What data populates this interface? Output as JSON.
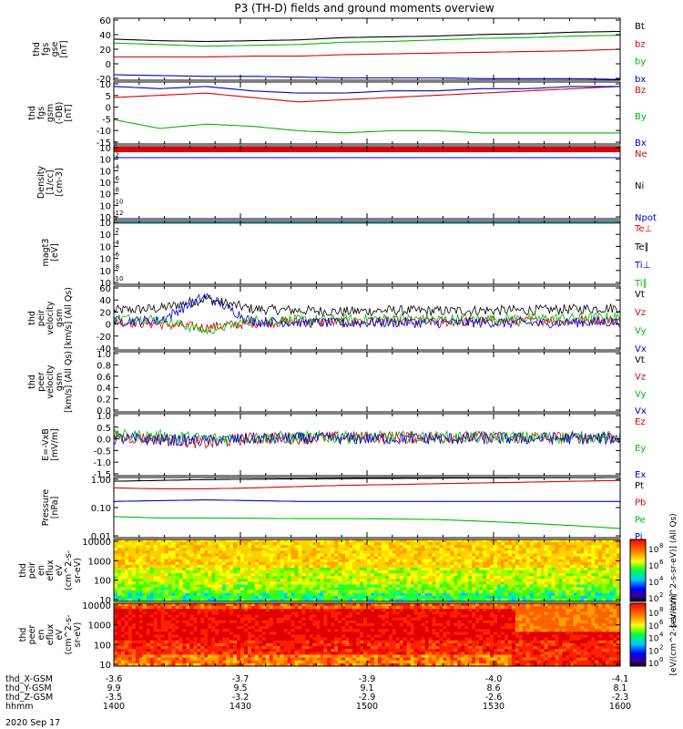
{
  "title": "P3 (TH-D) fields and ground moments overview",
  "colors": {
    "black": "#000000",
    "red": "#e00000",
    "green": "#00cc00",
    "blue": "#0000cc"
  },
  "chart_data": [
    {
      "type": "line",
      "panel": "fgs_gse",
      "ylabel": [
        "thd",
        "fgs",
        "gse",
        "[nT]"
      ],
      "yticks": [
        "60",
        "40",
        "20",
        "0",
        "-20"
      ],
      "ylim": [
        -20,
        60
      ],
      "series": [
        {
          "name": "Bt",
          "color": "black",
          "values": [
            33,
            31,
            30,
            31,
            32,
            35,
            36,
            37,
            39,
            40,
            42,
            43
          ]
        },
        {
          "name": "bz",
          "color": "red",
          "values": [
            10,
            10,
            10,
            11,
            11,
            13,
            14,
            15,
            16,
            17,
            18,
            20
          ]
        },
        {
          "name": "by",
          "color": "green",
          "values": [
            28,
            26,
            24,
            25,
            26,
            29,
            30,
            32,
            34,
            35,
            37,
            38
          ]
        },
        {
          "name": "bx",
          "color": "blue",
          "values": [
            -13,
            -14,
            -15,
            -15,
            -16,
            -17,
            -17,
            -17,
            -18,
            -18,
            -18,
            -19
          ]
        }
      ]
    },
    {
      "type": "line",
      "panel": "fgs_gsm",
      "ylabel": [
        "thd",
        "fgs",
        "gsm",
        "(-DB)",
        "[nT]"
      ],
      "yticks": [
        "10",
        "5",
        "0",
        "-5",
        "-10",
        "-15"
      ],
      "ylim": [
        -18,
        10
      ],
      "series": [
        {
          "name": "Bz",
          "color": "red",
          "values": [
            3,
            4,
            5,
            3,
            1,
            2,
            3,
            4,
            5,
            6,
            7,
            8
          ]
        },
        {
          "name": "By",
          "color": "green",
          "values": [
            -7,
            -11,
            -9,
            -10,
            -12,
            -13,
            -12,
            -12,
            -13,
            -13,
            -13,
            -13
          ]
        },
        {
          "name": "Bx",
          "color": "blue",
          "values": [
            8,
            7,
            8,
            6,
            5,
            5,
            6,
            6,
            7,
            7,
            8,
            8
          ]
        }
      ]
    },
    {
      "type": "line",
      "panel": "density",
      "ylabel": [
        "Density",
        "[1/cc]",
        "[cm-3]"
      ],
      "yticks": [
        "10^0",
        "10^-2",
        "10^-4",
        "10^-6",
        "10^-8",
        "10^-10",
        "10^-12"
      ],
      "scale": "log",
      "series": [
        {
          "name": "Ne",
          "color": "red",
          "values": [
            1,
            1,
            1,
            1,
            1,
            1,
            1,
            1,
            1,
            1,
            1,
            1
          ]
        },
        {
          "name": "Ni",
          "color": "black",
          "values": []
        },
        {
          "name": "Npot",
          "color": "blue",
          "values": [
            1,
            1,
            1,
            1,
            1,
            1,
            1,
            1,
            1,
            1,
            1,
            1
          ]
        }
      ]
    },
    {
      "type": "line",
      "panel": "temperature",
      "ylabel": [
        "magt3",
        "[eV]"
      ],
      "yticks": [
        "10^0",
        "10^-2",
        "10^-4",
        "10^-6",
        "10^-8",
        "10^-10"
      ],
      "scale": "log",
      "series": [
        {
          "name": "Te⊥",
          "color": "red",
          "values": []
        },
        {
          "name": "Te∥",
          "color": "black",
          "values": []
        },
        {
          "name": "Ti⊥",
          "color": "blue",
          "values": []
        },
        {
          "name": "Ti∥",
          "color": "green",
          "values": []
        }
      ]
    },
    {
      "type": "line",
      "panel": "peir_velocity",
      "ylabel": [
        "thd",
        "peir",
        "velocity",
        "gsm",
        "[km/s] (All Qs)"
      ],
      "yticks": [
        "60",
        "40",
        "20",
        "0",
        "-20",
        "-40"
      ],
      "ylim": [
        -40,
        60
      ],
      "series": [
        {
          "name": "Vt",
          "color": "black",
          "values": [
            22,
            25,
            40,
            24,
            22,
            20,
            22,
            21,
            22,
            22,
            24,
            26
          ]
        },
        {
          "name": "Vz",
          "color": "red",
          "values": [
            5,
            0,
            -5,
            2,
            4,
            3,
            5,
            4,
            5,
            5,
            6,
            7
          ]
        },
        {
          "name": "Vy",
          "color": "green",
          "values": [
            10,
            8,
            -10,
            6,
            7,
            8,
            9,
            8,
            9,
            9,
            10,
            11
          ]
        },
        {
          "name": "Vx",
          "color": "blue",
          "values": [
            5,
            6,
            45,
            5,
            3,
            2,
            3,
            2,
            3,
            2,
            3,
            4
          ]
        }
      ]
    },
    {
      "type": "line",
      "panel": "peer_velocity",
      "ylabel": [
        "thd",
        "peer",
        "velocity",
        "gsm",
        "[km/s] (All Qs)"
      ],
      "yticks": [
        "1.0",
        "0.8",
        "0.6",
        "0.4",
        "0.2",
        "0.0"
      ],
      "ylim": [
        0,
        1
      ],
      "series": [
        {
          "name": "Vt",
          "color": "black",
          "values": []
        },
        {
          "name": "Vz",
          "color": "red",
          "values": []
        },
        {
          "name": "Vy",
          "color": "green",
          "values": []
        },
        {
          "name": "Vx",
          "color": "blue",
          "values": []
        }
      ]
    },
    {
      "type": "line",
      "panel": "efield",
      "ylabel": [
        "E=-VxB",
        "[mV/m]"
      ],
      "yticks": [
        "1.0",
        "0.5",
        "0.0",
        "-0.5",
        "-1.0",
        "-1.5"
      ],
      "ylim": [
        -1.5,
        1.0
      ],
      "series": [
        {
          "name": "Ez",
          "color": "red",
          "values": [
            0.05,
            0.0,
            -0.2,
            0.0,
            0.02,
            0.05,
            0.05,
            0.05,
            0.05,
            0.03,
            0.05,
            0.05
          ]
        },
        {
          "name": "Ey",
          "color": "green",
          "values": [
            0.1,
            0.1,
            0.0,
            0.05,
            0.05,
            0.05,
            0.05,
            0.05,
            0.05,
            0.05,
            0.05,
            0.05
          ]
        },
        {
          "name": "Ex",
          "color": "blue",
          "values": [
            0.0,
            -0.05,
            -0.1,
            0.0,
            0.0,
            0.0,
            0.0,
            0.0,
            0.0,
            0.0,
            0.0,
            0.0
          ]
        }
      ]
    },
    {
      "type": "line",
      "panel": "pressure",
      "scale": "log",
      "ylabel": [
        "Pressure",
        "[nPa]"
      ],
      "yticks": [
        "1.00",
        "0.10",
        "0.01"
      ],
      "ylim": [
        0.01,
        1.0
      ],
      "series": [
        {
          "name": "Pt",
          "color": "black",
          "values": [
            0.75,
            0.8,
            0.85,
            0.88,
            0.9,
            0.92,
            0.94,
            0.95,
            0.97,
            0.98,
            0.99,
            1.0
          ]
        },
        {
          "name": "Pb",
          "color": "red",
          "values": [
            0.45,
            0.42,
            0.42,
            0.45,
            0.5,
            0.55,
            0.58,
            0.62,
            0.66,
            0.7,
            0.75,
            0.8
          ]
        },
        {
          "name": "Pe",
          "color": "green",
          "values": [
            0.05,
            0.045,
            0.045,
            0.044,
            0.043,
            0.043,
            0.042,
            0.04,
            0.035,
            0.03,
            0.025,
            0.02
          ]
        },
        {
          "name": "Pi",
          "color": "blue",
          "values": [
            0.16,
            0.17,
            0.18,
            0.17,
            0.16,
            0.16,
            0.16,
            0.16,
            0.16,
            0.16,
            0.16,
            0.16
          ]
        }
      ]
    },
    {
      "type": "heatmap",
      "panel": "peir_en_eflux",
      "ylabel": [
        "thd",
        "peir",
        "en",
        "eflux",
        "eV",
        "(cm^2-s-",
        "sr-eV)"
      ],
      "yticks": [
        "10000",
        "1000",
        "100",
        "10"
      ],
      "ylim": [
        10,
        20000
      ],
      "colorbar_ticks": [
        "10^8",
        "10^6",
        "10^4",
        "10^2"
      ],
      "colorbar_label": "[eV/(cm^2-s-sr-eV)] (All Qs)"
    },
    {
      "type": "heatmap",
      "panel": "peer_en_eflux",
      "ylabel": [
        "thd",
        "peer",
        "en",
        "eflux",
        "eV",
        "(cm^2-s-",
        "sr-eV)"
      ],
      "yticks": [
        "10000",
        "1000",
        "100",
        "10"
      ],
      "ylim": [
        5,
        30000
      ],
      "colorbar_ticks": [
        "10^8",
        "10^6",
        "10^4",
        "10^2",
        "10^0"
      ],
      "colorbar_label": "[eV/(cm^2-s-sr-eV)]"
    }
  ],
  "xaxis": {
    "rows": [
      {
        "label": "thd_X-GSM",
        "values": [
          "-3.6",
          "-3.7",
          "-3.9",
          "-4.0",
          "-4.1"
        ]
      },
      {
        "label": "thd_Y-GSM",
        "values": [
          "9.9",
          "9.5",
          "9.1",
          "8.6",
          "8.1"
        ]
      },
      {
        "label": "thd_Z-GSM",
        "values": [
          "-3.5",
          "-3.2",
          "-2.9",
          "-2.6",
          "-2.3"
        ]
      },
      {
        "label": "hhmm",
        "values": [
          "1400",
          "1430",
          "1500",
          "1530",
          "1600"
        ]
      }
    ],
    "date": "2020 Sep 17"
  }
}
